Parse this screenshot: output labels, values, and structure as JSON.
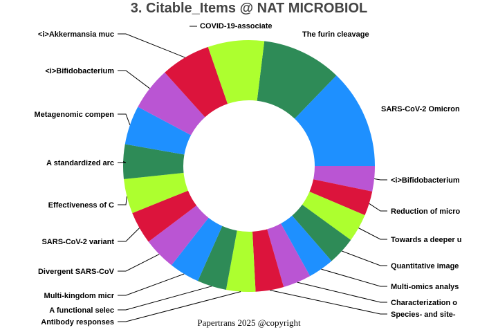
{
  "chart_data": {
    "type": "pie",
    "title": "3. Citable_Items @ NAT MICROBIOL",
    "hole": true,
    "direction": "clockwise",
    "labels": [
      "The furin cleavage",
      "SARS-CoV-2 Omicron",
      "<i>Bifidobacterium",
      "Reduction of micro",
      "Towards a deeper u",
      "Quantitative image",
      "Multi-omics analys",
      "Characterization o",
      "Species- and site-",
      "Antibody responses",
      "A functional selec",
      "Multi-kingdom micr",
      "Divergent SARS-CoV",
      "SARS-CoV-2 variant",
      "Effectiveness of C",
      "A standardized arc",
      "Metagenomic compen",
      "<i>Bifidobacterium",
      "<i>Akkermansia muc",
      "COVID-19-associate"
    ],
    "values": [
      37,
      46,
      11.7,
      11.3,
      13,
      13,
      12,
      13,
      13,
      13.5,
      13.5,
      14,
      15,
      15,
      16,
      16,
      18,
      20,
      23,
      26
    ],
    "colors": [
      "#2e8b57",
      "#1e90ff",
      "#ba55d3",
      "#dc143c",
      "#adff2f",
      "#2e8b57",
      "#1e90ff",
      "#ba55d3",
      "#dc143c",
      "#adff2f",
      "#2e8b57",
      "#1e90ff",
      "#ba55d3",
      "#dc143c",
      "#adff2f",
      "#2e8b57",
      "#1e90ff",
      "#ba55d3",
      "#dc143c",
      "#adff2f"
    ]
  },
  "footer": "Papertrans 2025 @copyright"
}
